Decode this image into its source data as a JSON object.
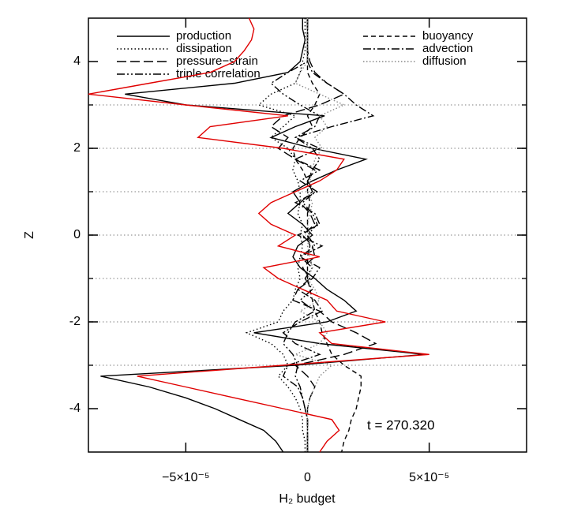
{
  "chart_data": {
    "type": "profile",
    "xlabel": "H₂ budget",
    "ylabel": "Z",
    "annotation": "t = 270.320",
    "xlim": [
      -9e-05,
      9e-05
    ],
    "ylim": [
      -5,
      5
    ],
    "xticks": [
      {
        "value": -5e-05,
        "label": "−5×10⁻⁵"
      },
      0,
      {
        "value": 5e-05,
        "label": "5×10⁻⁵"
      }
    ],
    "yticks": [
      -4,
      -2,
      0,
      2,
      4
    ],
    "hlines": [
      -3,
      -2,
      -1,
      0,
      1,
      2,
      3
    ],
    "z": [
      5,
      4.75,
      4.5,
      4.25,
      4,
      3.75,
      3.5,
      3.25,
      3,
      2.75,
      2.5,
      2.25,
      2,
      1.75,
      1.5,
      1.25,
      1,
      0.75,
      0.5,
      0.25,
      0,
      -0.25,
      -0.5,
      -0.75,
      -1,
      -1.25,
      -1.5,
      -1.75,
      -2,
      -2.25,
      -2.5,
      -2.75,
      -3,
      -3.25,
      -3.5,
      -3.75,
      -4,
      -4.25,
      -4.5,
      -4.75,
      -5
    ],
    "series": [
      {
        "name": "production",
        "color": "#000000",
        "dash": "none",
        "values": [
          -2e-06,
          -2e-06,
          -1e-06,
          -2e-06,
          -3e-06,
          -8e-06,
          -3e-05,
          -7.5e-05,
          -5e-05,
          7e-06,
          -5e-06,
          -1.5e-05,
          2e-06,
          2.4e-05,
          1.2e-05,
          2e-06,
          -6e-06,
          -3e-06,
          -8e-06,
          -2e-06,
          2e-06,
          -4e-06,
          -6e-06,
          -3e-06,
          3e-06,
          8e-06,
          1.5e-05,
          2e-05,
          8e-06,
          -2.2e-05,
          5e-06,
          4.8e-05,
          -5e-06,
          -8.5e-05,
          -6.5e-05,
          -5e-05,
          -3.8e-05,
          -2.8e-05,
          -1.8e-05,
          -1.3e-05,
          -1e-05
        ]
      },
      {
        "name": "dissipation",
        "color": "#000000",
        "dash": "1.5,3",
        "values": [
          -1e-06,
          -1e-06,
          -1e-06,
          -1e-06,
          -2e-06,
          -3e-06,
          -5e-06,
          -1.5e-05,
          -2e-05,
          -5e-06,
          -1e-05,
          -1.5e-05,
          -8e-06,
          -5e-06,
          -6e-06,
          -4e-06,
          -3e-06,
          -3e-06,
          -4e-06,
          -2e-06,
          -3e-06,
          -2e-06,
          -3e-06,
          -4e-06,
          -3e-06,
          -5e-06,
          -6e-06,
          -1e-05,
          -1.2e-05,
          -2.5e-05,
          -1.5e-05,
          -1e-05,
          -8e-06,
          -1.2e-05,
          -8e-06,
          -5e-06,
          -3e-06,
          -2e-06,
          -2e-06,
          -1e-06,
          -1e-06
        ]
      },
      {
        "name": "pressure−strain",
        "color": "#000000",
        "dash": "12,5",
        "values": [
          0,
          0,
          0,
          0,
          1e-06,
          3e-06,
          8e-06,
          1.5e-05,
          5e-06,
          -1e-05,
          -1.5e-05,
          -8e-06,
          -1.2e-05,
          -5e-06,
          3e-06,
          0,
          2e-06,
          -3e-06,
          1e-06,
          3e-06,
          -2e-06,
          2e-06,
          3e-06,
          -2e-06,
          1e-06,
          -4e-06,
          -6e-06,
          5e-06,
          1e-05,
          2e-05,
          2.8e-05,
          1.5e-05,
          -5e-06,
          0,
          3e-06,
          1e-06,
          0,
          0,
          0,
          0,
          0
        ]
      },
      {
        "name": "triple correlation",
        "color": "#000000",
        "dash": "10,3,2,3,2,3",
        "values": [
          0,
          0,
          0,
          0,
          0,
          -8e-06,
          -1.5e-05,
          -1e-05,
          -3e-06,
          5e-06,
          3e-06,
          -5e-06,
          2e-06,
          5e-06,
          2e-06,
          0,
          3e-06,
          -2e-06,
          2e-06,
          4e-06,
          0,
          3e-06,
          -3e-06,
          2e-06,
          -1e-06,
          2e-06,
          -3e-06,
          3e-06,
          -5e-06,
          -8e-06,
          -1e-05,
          -6e-06,
          -4e-06,
          -5e-06,
          -3e-06,
          -2e-06,
          -1e-06,
          0,
          0,
          0,
          0
        ]
      },
      {
        "name": "buoyancy",
        "color": "#000000",
        "dash": "6,4",
        "values": [
          0,
          0,
          0,
          0,
          0,
          0,
          2e-06,
          5e-06,
          3e-06,
          0,
          2e-06,
          -3e-06,
          -6e-06,
          -5e-06,
          -2e-06,
          0,
          0,
          1e-06,
          0,
          0,
          0,
          1e-06,
          0,
          0,
          0,
          1e-06,
          2e-06,
          3e-06,
          5e-06,
          6e-06,
          8e-06,
          1e-05,
          1.5e-05,
          2.2e-05,
          2.2e-05,
          2.1e-05,
          2e-05,
          1.8e-05,
          1.7e-05,
          1.5e-05,
          1.4e-05
        ]
      },
      {
        "name": "advection",
        "color": "#000000",
        "dash": "10,3,2,3",
        "values": [
          0,
          0,
          0,
          0,
          0,
          2e-06,
          8e-06,
          1.5e-05,
          2e-05,
          2.7e-05,
          1e-05,
          -5e-06,
          5e-06,
          -5e-06,
          5e-06,
          -3e-06,
          4e-06,
          -5e-06,
          3e-06,
          5e-06,
          -4e-06,
          6e-06,
          -3e-06,
          5e-06,
          2e-06,
          -4e-06,
          3e-06,
          6e-06,
          -3e-06,
          -1e-05,
          -5e-06,
          5e-06,
          -8e-06,
          -1e-05,
          -4e-06,
          -2e-06,
          -1e-06,
          0,
          0,
          0,
          0
        ]
      },
      {
        "name": "diffusion",
        "color": "#888888",
        "dash": "1.5,2.5",
        "values": [
          0,
          0,
          0,
          0,
          0,
          -3e-06,
          -5e-06,
          5e-06,
          1.5e-05,
          5e-06,
          8e-06,
          3e-06,
          6e-06,
          3e-06,
          2e-06,
          1e-06,
          0,
          2e-06,
          1e-06,
          0,
          1e-06,
          0,
          1e-06,
          2e-06,
          0,
          3e-06,
          5e-06,
          -3e-06,
          5e-06,
          8e-06,
          5e-06,
          -5e-06,
          1e-05,
          5e-06,
          3e-06,
          1e-06,
          0,
          0,
          0,
          0,
          0
        ]
      },
      {
        "color": "#e00000",
        "dash": "none",
        "values": [
          -2.4e-05,
          -2.2e-05,
          -2.3e-05,
          -2.6e-05,
          -3e-05,
          -4e-05,
          -6.5e-05,
          -9e-05,
          -5e-05,
          -8e-06,
          -4e-05,
          -4.5e-05,
          -1e-05,
          1.5e-05,
          1.2e-05,
          5e-06,
          -5e-06,
          -1.5e-05,
          -2e-05,
          -1.5e-05,
          -5e-06,
          -1.2e-05,
          5e-06,
          -1.8e-05,
          -1.2e-05,
          -2e-06,
          8e-06,
          1.2e-05,
          3.2e-05,
          5e-06,
          1e-05,
          5e-05,
          -1e-05,
          -7e-05,
          -5e-05,
          -3e-05,
          -1e-05,
          1e-05,
          1.3e-05,
          8e-06,
          5e-06
        ]
      }
    ]
  }
}
